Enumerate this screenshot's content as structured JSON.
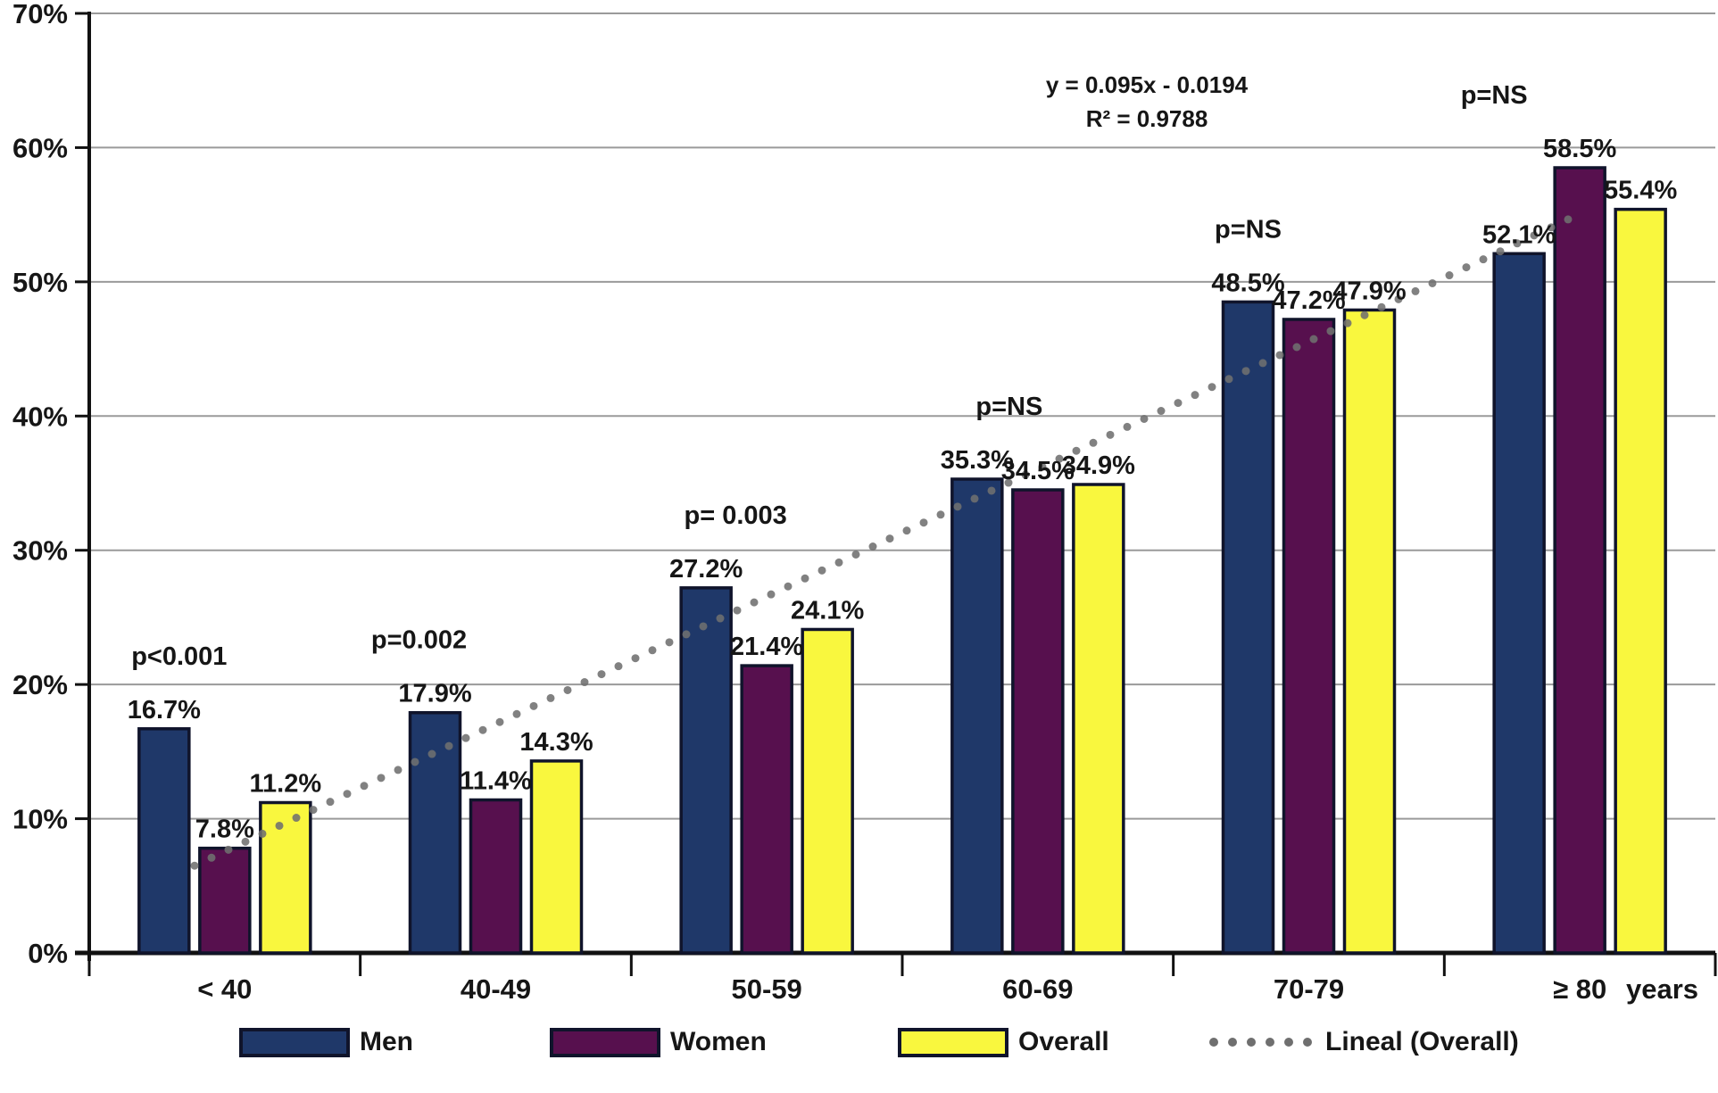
{
  "chart_data": {
    "type": "bar",
    "title": "",
    "categories": [
      "< 40",
      "40-49",
      "50-59",
      "60-69",
      "70-79",
      "≥ 80"
    ],
    "x_unit": "years",
    "y_ticks": [
      "0%",
      "10%",
      "20%",
      "30%",
      "40%",
      "50%",
      "60%",
      "70%"
    ],
    "ylim": [
      0,
      70
    ],
    "grid": true,
    "legend_position": "bottom",
    "series": [
      {
        "name": "Men",
        "color": "#1f3869",
        "values": [
          16.7,
          17.9,
          27.2,
          35.3,
          48.5,
          52.1
        ],
        "labels": [
          "16.7%",
          "17.9%",
          "27.2%",
          "35.3%",
          "48.5%",
          "52.1%"
        ]
      },
      {
        "name": "Women",
        "color": "#57104e",
        "values": [
          7.8,
          11.4,
          21.4,
          34.5,
          47.2,
          58.5
        ],
        "labels": [
          "7.8%",
          "11.4%",
          "21.4%",
          "34.5%",
          "47.2%",
          "58.5%"
        ]
      },
      {
        "name": "Overall",
        "color": "#f9f73e",
        "values": [
          11.2,
          14.3,
          24.1,
          34.9,
          47.9,
          55.4
        ],
        "labels": [
          "11.2%",
          "14.3%",
          "24.1%",
          "34.9%",
          "47.9%",
          "55.4%"
        ]
      }
    ],
    "p_values": [
      "p<0.001",
      "p=0.002",
      "p= 0.003",
      "p=NS",
      "p=NS",
      "p=NS"
    ],
    "trendline": {
      "name": "Lineal (Overall)",
      "equation": "y = 0.095x - 0.0194",
      "r_squared": "R² = 0.9788",
      "slope": 0.095,
      "intercept": -0.0194,
      "color": "#6f6f6f"
    },
    "colors": {
      "bar_border": "#10142b",
      "grid": "#9a9a9a",
      "axis": "#111111",
      "text": "#161616"
    }
  }
}
